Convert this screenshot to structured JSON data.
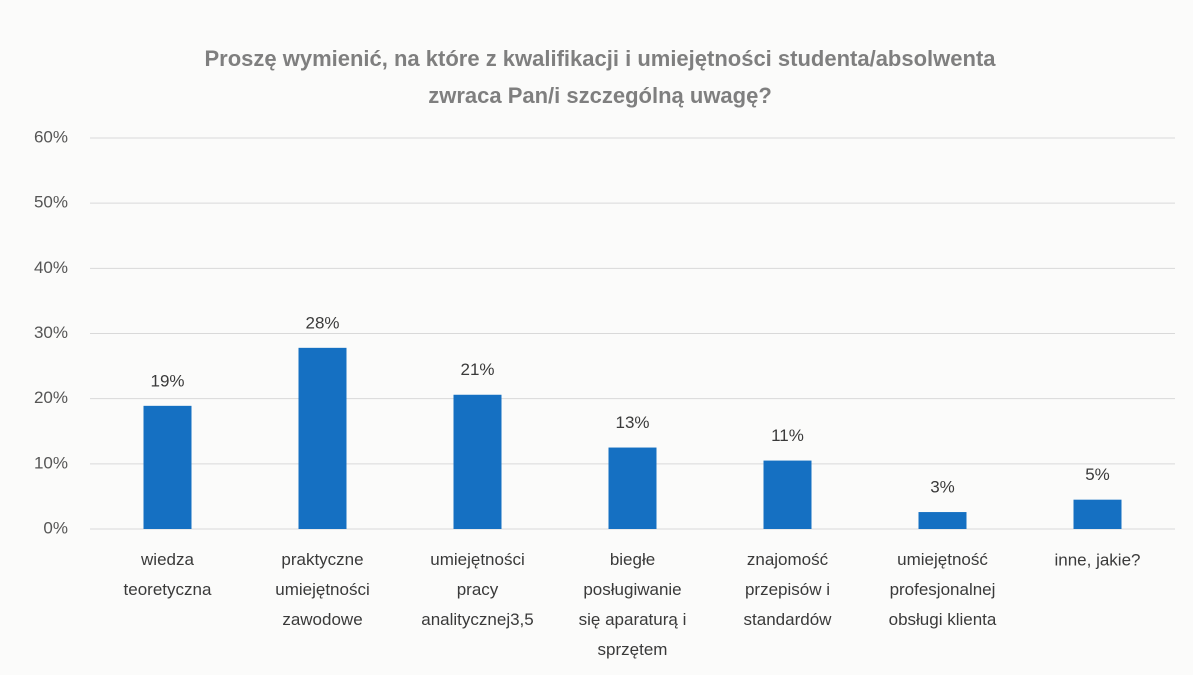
{
  "chart_data": {
    "type": "bar",
    "title": "Proszę wymienić, na które z kwalifikacji i umiejętności studenta/absolwenta\nzwraca Pan/i szczególną uwagę?",
    "categories": [
      "wiedza\nteoretyczna",
      "praktyczne\numiejętności\nzawodowe",
      "umiejętności\npracy\nanalitycznej3,5",
      "biegłe\nposługiwanie\nsię aparaturą i\nsprzętem",
      "znajomość\nprzepisów i\nstandardów",
      "umiejętność\nprofesjonalnej\nobsługi klienta",
      "inne, jakie?"
    ],
    "values": [
      18.9,
      27.8,
      20.6,
      12.5,
      10.5,
      2.6,
      4.5
    ],
    "value_labels": [
      "19%",
      "28%",
      "21%",
      "13%",
      "11%",
      "3%",
      "5%"
    ],
    "color": "#1570c2",
    "ylim": [
      0,
      60
    ],
    "yticks": [
      {
        "value": 0,
        "label": "0%"
      },
      {
        "value": 10,
        "label": "10%"
      },
      {
        "value": 20,
        "label": "20%"
      },
      {
        "value": 30,
        "label": "30%"
      },
      {
        "value": 40,
        "label": "40%"
      },
      {
        "value": 50,
        "label": "50%"
      },
      {
        "value": 60,
        "label": "60%"
      }
    ],
    "grid": true
  }
}
